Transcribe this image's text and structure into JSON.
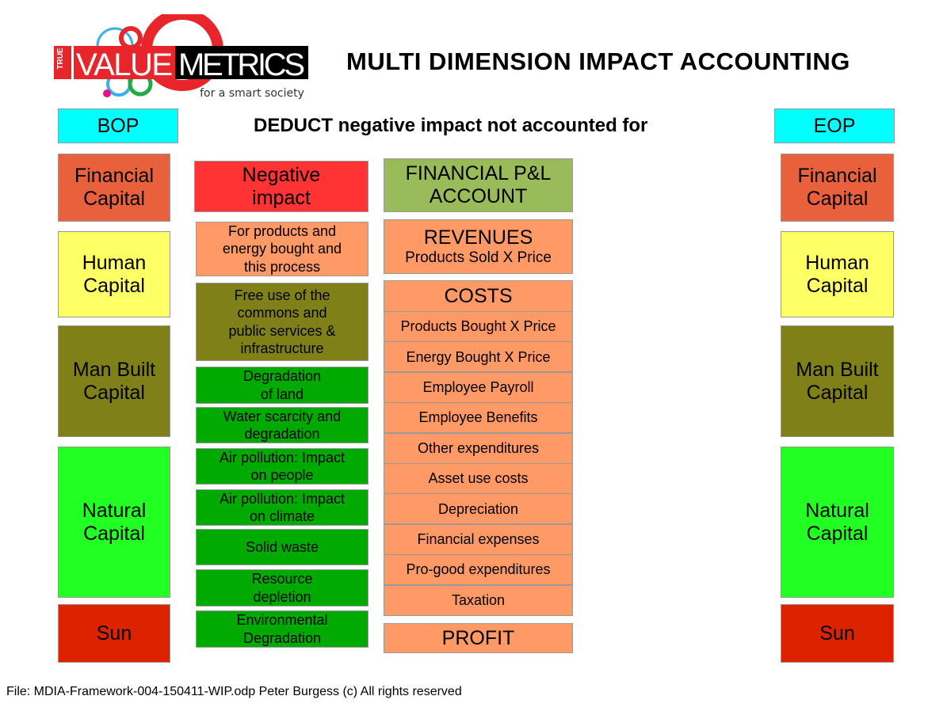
{
  "logo": {
    "true": "TRUE",
    "value": "VALUE",
    "metrics": "METRICS",
    "tagline": "for a smart society"
  },
  "title": "MULTI DIMENSION IMPACT ACCOUNTING",
  "subtitle": "DEDUCT negative impact not accounted for",
  "bop": {
    "label": "BOP",
    "items": [
      "Financial Capital",
      "Human Capital",
      "Man Built Capital",
      "Natural Capital",
      "Sun"
    ]
  },
  "eop": {
    "label": "EOP",
    "items": [
      "Financial Capital",
      "Human Capital",
      "Man Built Capital",
      "Natural Capital",
      "Sun"
    ]
  },
  "negative": {
    "header": "Negative impact",
    "items": [
      "For products and energy bought and this process",
      "Free use of the commons and public services & infrastructure",
      "Degradation of land",
      "Water scarcity and degradation",
      "Air pollution: Impact on people",
      "Air pollution: Impact on climate",
      "Solid waste",
      "Resource depletion",
      "Environmental Degradation"
    ]
  },
  "pl": {
    "header": "FINANCIAL P&L ACCOUNT",
    "revenues_title": "REVENUES",
    "revenues_sub": "Products Sold X Price",
    "costs_title": "COSTS",
    "costs": [
      "Products Bought X Price",
      "Energy Bought X Price",
      "Employee Payroll",
      "Employee Benefits",
      "Other expenditures",
      "Asset use costs",
      "Depreciation",
      "Financial expenses",
      "Pro-good expenditures",
      "Taxation"
    ],
    "profit": "PROFIT"
  },
  "footer": "File: MDIA-Framework-004-150411-WIP.odp  Peter Burgess (c) All rights reserved",
  "colors": {
    "bop": "#00ffff",
    "financial": "#e8603c",
    "human": "#ffff66",
    "manbuilt": "#808019",
    "natural": "#22ff22",
    "sun": "#dd2200",
    "negative": "#ff3333",
    "orange": "#ff9966",
    "pl": "#99bb5a",
    "green": "#00aa00"
  }
}
